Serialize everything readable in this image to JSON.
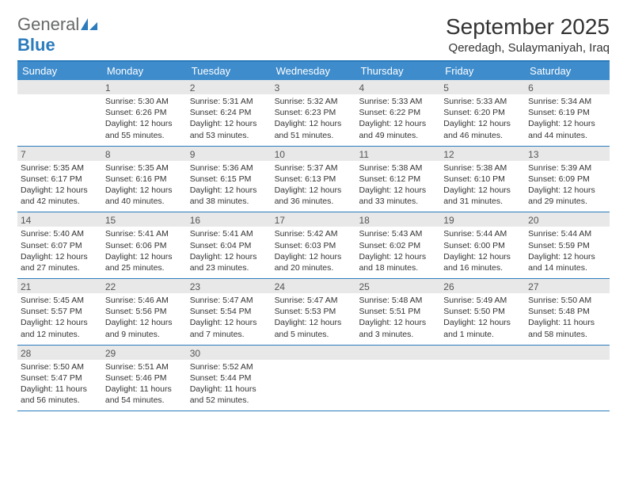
{
  "logo": {
    "word1": "General",
    "word2": "Blue"
  },
  "title": "September 2025",
  "location": "Qeredagh, Sulaymaniyah, Iraq",
  "colors": {
    "header_bg": "#3e8ccc",
    "header_text": "#ffffff",
    "rule": "#2b7bbd",
    "band_bg": "#e8e8e8",
    "body_text": "#333333",
    "logo_gray": "#676869",
    "logo_blue": "#2b7bbd",
    "page_bg": "#ffffff"
  },
  "typography": {
    "title_fontsize": 28,
    "location_fontsize": 15,
    "dayheader_fontsize": 13,
    "daynum_fontsize": 12,
    "body_fontsize": 10.5
  },
  "day_labels": [
    "Sunday",
    "Monday",
    "Tuesday",
    "Wednesday",
    "Thursday",
    "Friday",
    "Saturday"
  ],
  "weeks": [
    [
      {
        "num": "",
        "lines": [
          "",
          "",
          "",
          ""
        ]
      },
      {
        "num": "1",
        "lines": [
          "Sunrise: 5:30 AM",
          "Sunset: 6:26 PM",
          "Daylight: 12 hours",
          "and 55 minutes."
        ]
      },
      {
        "num": "2",
        "lines": [
          "Sunrise: 5:31 AM",
          "Sunset: 6:24 PM",
          "Daylight: 12 hours",
          "and 53 minutes."
        ]
      },
      {
        "num": "3",
        "lines": [
          "Sunrise: 5:32 AM",
          "Sunset: 6:23 PM",
          "Daylight: 12 hours",
          "and 51 minutes."
        ]
      },
      {
        "num": "4",
        "lines": [
          "Sunrise: 5:33 AM",
          "Sunset: 6:22 PM",
          "Daylight: 12 hours",
          "and 49 minutes."
        ]
      },
      {
        "num": "5",
        "lines": [
          "Sunrise: 5:33 AM",
          "Sunset: 6:20 PM",
          "Daylight: 12 hours",
          "and 46 minutes."
        ]
      },
      {
        "num": "6",
        "lines": [
          "Sunrise: 5:34 AM",
          "Sunset: 6:19 PM",
          "Daylight: 12 hours",
          "and 44 minutes."
        ]
      }
    ],
    [
      {
        "num": "7",
        "lines": [
          "Sunrise: 5:35 AM",
          "Sunset: 6:17 PM",
          "Daylight: 12 hours",
          "and 42 minutes."
        ]
      },
      {
        "num": "8",
        "lines": [
          "Sunrise: 5:35 AM",
          "Sunset: 6:16 PM",
          "Daylight: 12 hours",
          "and 40 minutes."
        ]
      },
      {
        "num": "9",
        "lines": [
          "Sunrise: 5:36 AM",
          "Sunset: 6:15 PM",
          "Daylight: 12 hours",
          "and 38 minutes."
        ]
      },
      {
        "num": "10",
        "lines": [
          "Sunrise: 5:37 AM",
          "Sunset: 6:13 PM",
          "Daylight: 12 hours",
          "and 36 minutes."
        ]
      },
      {
        "num": "11",
        "lines": [
          "Sunrise: 5:38 AM",
          "Sunset: 6:12 PM",
          "Daylight: 12 hours",
          "and 33 minutes."
        ]
      },
      {
        "num": "12",
        "lines": [
          "Sunrise: 5:38 AM",
          "Sunset: 6:10 PM",
          "Daylight: 12 hours",
          "and 31 minutes."
        ]
      },
      {
        "num": "13",
        "lines": [
          "Sunrise: 5:39 AM",
          "Sunset: 6:09 PM",
          "Daylight: 12 hours",
          "and 29 minutes."
        ]
      }
    ],
    [
      {
        "num": "14",
        "lines": [
          "Sunrise: 5:40 AM",
          "Sunset: 6:07 PM",
          "Daylight: 12 hours",
          "and 27 minutes."
        ]
      },
      {
        "num": "15",
        "lines": [
          "Sunrise: 5:41 AM",
          "Sunset: 6:06 PM",
          "Daylight: 12 hours",
          "and 25 minutes."
        ]
      },
      {
        "num": "16",
        "lines": [
          "Sunrise: 5:41 AM",
          "Sunset: 6:04 PM",
          "Daylight: 12 hours",
          "and 23 minutes."
        ]
      },
      {
        "num": "17",
        "lines": [
          "Sunrise: 5:42 AM",
          "Sunset: 6:03 PM",
          "Daylight: 12 hours",
          "and 20 minutes."
        ]
      },
      {
        "num": "18",
        "lines": [
          "Sunrise: 5:43 AM",
          "Sunset: 6:02 PM",
          "Daylight: 12 hours",
          "and 18 minutes."
        ]
      },
      {
        "num": "19",
        "lines": [
          "Sunrise: 5:44 AM",
          "Sunset: 6:00 PM",
          "Daylight: 12 hours",
          "and 16 minutes."
        ]
      },
      {
        "num": "20",
        "lines": [
          "Sunrise: 5:44 AM",
          "Sunset: 5:59 PM",
          "Daylight: 12 hours",
          "and 14 minutes."
        ]
      }
    ],
    [
      {
        "num": "21",
        "lines": [
          "Sunrise: 5:45 AM",
          "Sunset: 5:57 PM",
          "Daylight: 12 hours",
          "and 12 minutes."
        ]
      },
      {
        "num": "22",
        "lines": [
          "Sunrise: 5:46 AM",
          "Sunset: 5:56 PM",
          "Daylight: 12 hours",
          "and 9 minutes."
        ]
      },
      {
        "num": "23",
        "lines": [
          "Sunrise: 5:47 AM",
          "Sunset: 5:54 PM",
          "Daylight: 12 hours",
          "and 7 minutes."
        ]
      },
      {
        "num": "24",
        "lines": [
          "Sunrise: 5:47 AM",
          "Sunset: 5:53 PM",
          "Daylight: 12 hours",
          "and 5 minutes."
        ]
      },
      {
        "num": "25",
        "lines": [
          "Sunrise: 5:48 AM",
          "Sunset: 5:51 PM",
          "Daylight: 12 hours",
          "and 3 minutes."
        ]
      },
      {
        "num": "26",
        "lines": [
          "Sunrise: 5:49 AM",
          "Sunset: 5:50 PM",
          "Daylight: 12 hours",
          "and 1 minute."
        ]
      },
      {
        "num": "27",
        "lines": [
          "Sunrise: 5:50 AM",
          "Sunset: 5:48 PM",
          "Daylight: 11 hours",
          "and 58 minutes."
        ]
      }
    ],
    [
      {
        "num": "28",
        "lines": [
          "Sunrise: 5:50 AM",
          "Sunset: 5:47 PM",
          "Daylight: 11 hours",
          "and 56 minutes."
        ]
      },
      {
        "num": "29",
        "lines": [
          "Sunrise: 5:51 AM",
          "Sunset: 5:46 PM",
          "Daylight: 11 hours",
          "and 54 minutes."
        ]
      },
      {
        "num": "30",
        "lines": [
          "Sunrise: 5:52 AM",
          "Sunset: 5:44 PM",
          "Daylight: 11 hours",
          "and 52 minutes."
        ]
      },
      {
        "num": "",
        "lines": [
          "",
          "",
          "",
          ""
        ]
      },
      {
        "num": "",
        "lines": [
          "",
          "",
          "",
          ""
        ]
      },
      {
        "num": "",
        "lines": [
          "",
          "",
          "",
          ""
        ]
      },
      {
        "num": "",
        "lines": [
          "",
          "",
          "",
          ""
        ]
      }
    ]
  ]
}
